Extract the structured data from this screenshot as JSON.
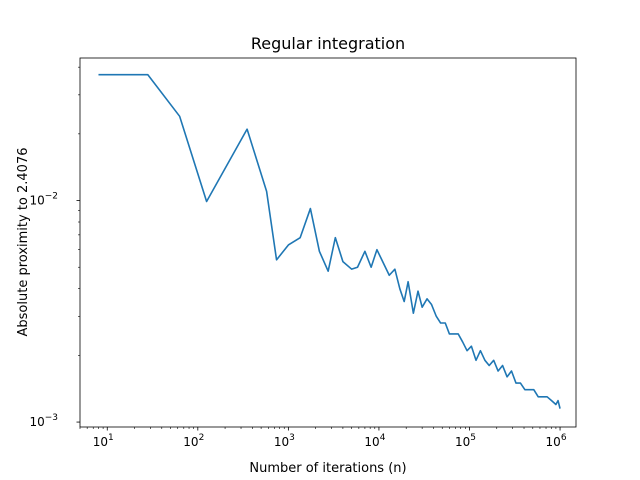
{
  "chart_data": {
    "type": "line",
    "title": "Regular integration",
    "xlabel": "Number of iterations (n)",
    "ylabel": "Absolute proximity to 2.4076",
    "xscale": "log",
    "yscale": "log",
    "xlim": [
      5,
      1500000
    ],
    "ylim": [
      0.00095,
      0.044
    ],
    "grid": false,
    "line_color": "#1f77b4",
    "x_ticks": [
      {
        "value": 10,
        "base": "10",
        "exp": "1"
      },
      {
        "value": 100,
        "base": "10",
        "exp": "2"
      },
      {
        "value": 1000,
        "base": "10",
        "exp": "3"
      },
      {
        "value": 10000,
        "base": "10",
        "exp": "4"
      },
      {
        "value": 100000,
        "base": "10",
        "exp": "5"
      },
      {
        "value": 1000000,
        "base": "10",
        "exp": "6"
      }
    ],
    "y_ticks": [
      {
        "value": 0.001,
        "base": "10",
        "exp": "−3"
      },
      {
        "value": 0.01,
        "base": "10",
        "exp": "−2"
      }
    ],
    "series": [
      {
        "x": [
          8,
          28,
          63,
          125,
          350,
          575,
          740,
          1000,
          1350,
          1750,
          2200,
          2750,
          3300,
          4000,
          5000,
          5800,
          7000,
          8200,
          9500,
          11000,
          13000,
          15000,
          17000,
          19000,
          21000,
          24000,
          27000,
          30000,
          34000,
          38000,
          43000,
          48000,
          54000,
          60000,
          67000,
          75000,
          84000,
          94000,
          105000,
          118000,
          132000,
          148000,
          165000,
          185000,
          207000,
          232000,
          260000,
          291000,
          326000,
          365000,
          409000,
          458000,
          513000,
          574000,
          643000,
          720000,
          806000,
          900000,
          950000,
          1000000
        ],
        "y": [
          0.037,
          0.037,
          0.024,
          0.0099,
          0.021,
          0.011,
          0.0054,
          0.0063,
          0.0068,
          0.0092,
          0.0059,
          0.0048,
          0.0068,
          0.0053,
          0.0049,
          0.005,
          0.0059,
          0.005,
          0.006,
          0.0053,
          0.0046,
          0.0049,
          0.004,
          0.0035,
          0.0043,
          0.0031,
          0.0039,
          0.0033,
          0.0036,
          0.0034,
          0.003,
          0.0028,
          0.0028,
          0.0025,
          0.0025,
          0.0025,
          0.0023,
          0.0021,
          0.0022,
          0.0019,
          0.0021,
          0.0019,
          0.0018,
          0.0019,
          0.0017,
          0.0018,
          0.0016,
          0.0017,
          0.0015,
          0.0015,
          0.0014,
          0.0014,
          0.0014,
          0.0013,
          0.0013,
          0.0013,
          0.00125,
          0.0012,
          0.00125,
          0.00115
        ]
      }
    ]
  }
}
